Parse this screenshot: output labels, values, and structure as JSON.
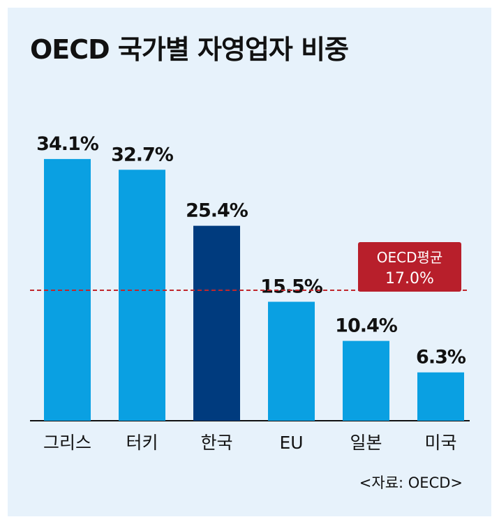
{
  "title": "OECD 국가별 자영업자 비중",
  "source": "<자료: OECD>",
  "colors": {
    "background": "#e7f2fb",
    "bar": "#0aa0e2",
    "highlight_bar": "#003b7e",
    "average_line": "#c0272d",
    "average_box": "#b81f2b"
  },
  "chart_data": {
    "type": "bar",
    "title": "OECD 국가별 자영업자 비중",
    "categories": [
      "그리스",
      "터키",
      "한국",
      "EU",
      "일본",
      "미국"
    ],
    "values": [
      34.1,
      32.7,
      25.4,
      15.5,
      10.4,
      6.3
    ],
    "value_labels": [
      "34.1%",
      "32.7%",
      "25.4%",
      "15.5%",
      "10.4%",
      "6.3%"
    ],
    "highlight": "한국",
    "ylim": [
      0,
      42
    ],
    "unit": "%",
    "grid": false,
    "average": {
      "label": "OECD평균",
      "value": 17.0,
      "value_label": "17.0%"
    }
  }
}
